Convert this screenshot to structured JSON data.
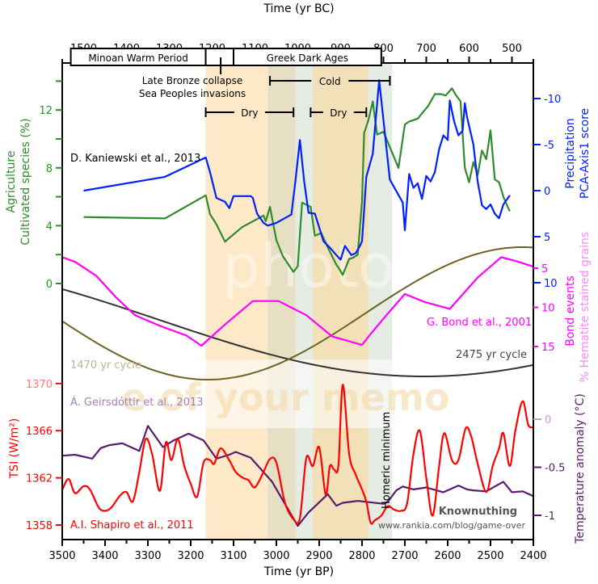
{
  "chart_data": {
    "type": "line",
    "title": "",
    "x_bottom": {
      "label": "Time (yr BP)",
      "range": [
        3500,
        2400
      ],
      "ticks": [
        3500,
        3400,
        3300,
        3200,
        3100,
        3000,
        2900,
        2800,
        2700,
        2600,
        2500,
        2400
      ]
    },
    "x_top": {
      "label": "Time (yr BC)",
      "range": [
        1550,
        450
      ],
      "ticks": [
        1500,
        1400,
        1300,
        1200,
        1100,
        1000,
        900,
        800,
        700,
        600,
        500
      ]
    },
    "axes": {
      "agriculture": {
        "label_line1": "Agriculture",
        "label_line2": "Cultivated species (%)",
        "side": "left",
        "ticks": [
          0,
          4,
          8,
          12
        ],
        "color": "#2e8b2e"
      },
      "precipitation": {
        "label_line1": "Precipitation",
        "label_line2": "PCA-Axis1 score",
        "side": "right",
        "ticks": [
          -10,
          -5,
          0,
          5,
          10
        ],
        "tick_labels": [
          "-10",
          "-5",
          "0",
          "5",
          "10"
        ],
        "inverted": true,
        "color": "#0020ff"
      },
      "bond": {
        "label_line1": "Bond events",
        "label_line2": "% Hematite stained grains",
        "side": "right",
        "ticks": [
          5,
          10,
          15
        ],
        "color": "#ff00ff"
      },
      "tsi": {
        "label": "TSI (W/m²)",
        "side": "left",
        "ticks": [
          1358,
          1362,
          1366,
          1370
        ],
        "color": "#ff0000"
      },
      "temperature": {
        "label": "Temperature anomaly (°C)",
        "side": "right",
        "ticks": [
          0,
          -0.5,
          -1
        ],
        "tick_labels": [
          "0",
          "-0.5",
          "-1"
        ],
        "color": "#5a1a6e"
      }
    },
    "bands": [
      {
        "from": 3165,
        "to": 3020,
        "color": "#fde9c8"
      },
      {
        "from": 3020,
        "to": 2955,
        "color": "#e6dfc4"
      },
      {
        "from": 2955,
        "to": 2915,
        "color": "#e4ece4"
      },
      {
        "from": 2915,
        "to": 2785,
        "color": "#f2e0b8"
      },
      {
        "from": 2785,
        "to": 2730,
        "color": "#e4ece4"
      }
    ],
    "periods": [
      {
        "label": "Minoan Warm Period",
        "from_bc": 1530,
        "to_bc": 1215
      },
      {
        "label": "",
        "from_bc": 1215,
        "to_bc": 1150
      },
      {
        "label": "Greek Dark Ages",
        "from_bc": 1150,
        "to_bc": 805
      }
    ],
    "annotations": {
      "collapse_line1": "Late Bronze collapse",
      "collapse_line2": "Sea Peoples invasions",
      "cold": {
        "label": "Cold",
        "from_bp": 3015,
        "to_bp": 2735
      },
      "dry1": {
        "label": "Dry",
        "from_bp": 3165,
        "to_bp": 2960
      },
      "dry2": {
        "label": "Dry",
        "from_bp": 2920,
        "to_bp": 2790
      },
      "homeric": "Homeric minimum",
      "kaniewski": "D. Kaniewski et al., 2013",
      "bond_ref": "G. Bond et al., 2001",
      "cycle2475": "2475 yr cycle",
      "cycle1470": "1470 yr cycle",
      "geirsdottir": "Á. Geirsdóttir et al., 2013",
      "shapiro": "A.I. Shapiro et al., 2011",
      "credit_name": "Knownuthing",
      "credit_url": "www.rankia.com/blog/game-over",
      "watermark1": "photob",
      "watermark2": "e of your memo"
    },
    "series": [
      {
        "name": "Agriculture (cultivated species %)",
        "axis": "agriculture",
        "color": "#2e8b2e",
        "x": [
          3450,
          3260,
          3165,
          3155,
          3140,
          3120,
          3080,
          3030,
          3025,
          3015,
          3000,
          2985,
          2960,
          2950,
          2940,
          2920,
          2910,
          2895,
          2880,
          2860,
          2855,
          2845,
          2830,
          2820,
          2810,
          2800,
          2795,
          2785,
          2775,
          2765,
          2750,
          2715,
          2700,
          2690,
          2670,
          2645,
          2630,
          2615,
          2605,
          2590,
          2580,
          2570,
          2560,
          2550,
          2540,
          2530,
          2520,
          2510,
          2500,
          2490,
          2480,
          2470,
          2460,
          2455
        ],
        "y": [
          4.6,
          4.5,
          6.1,
          4.8,
          4.1,
          2.9,
          3.9,
          4.7,
          4.3,
          5.3,
          3.0,
          1.9,
          0.8,
          1.2,
          5.6,
          5.3,
          3.3,
          3.5,
          2.5,
          1.3,
          1.1,
          0.6,
          1.7,
          1.8,
          2.0,
          5.7,
          10.4,
          11.3,
          12.6,
          10.3,
          10.5,
          8.0,
          11.0,
          11.2,
          11.4,
          12.3,
          13.1,
          13.1,
          13.0,
          13.5,
          13.0,
          12.6,
          8.0,
          7.0,
          8.4,
          7.5,
          9.2,
          8.6,
          10.6,
          7.2,
          7.0,
          6.0,
          5.3,
          5.0
        ]
      },
      {
        "name": "Precipitation (PCA-Axis1 score)",
        "axis": "precipitation",
        "color": "#0020ff",
        "x": [
          3450,
          3260,
          3165,
          3155,
          3140,
          3120,
          3110,
          3100,
          3080,
          3060,
          3055,
          3045,
          3030,
          3020,
          3000,
          2965,
          2955,
          2945,
          2935,
          2925,
          2910,
          2890,
          2875,
          2860,
          2850,
          2840,
          2825,
          2815,
          2805,
          2800,
          2790,
          2775,
          2760,
          2735,
          2705,
          2700,
          2690,
          2680,
          2670,
          2660,
          2650,
          2640,
          2630,
          2620,
          2610,
          2600,
          2595,
          2585,
          2575,
          2565,
          2560,
          2555,
          2540,
          2530,
          2520,
          2510,
          2500,
          2490,
          2480,
          2470,
          2455
        ],
        "y": [
          0.0,
          -1.5,
          -3.6,
          -2.0,
          0.8,
          1.2,
          1.9,
          0.6,
          0.6,
          0.6,
          0.8,
          2.5,
          3.5,
          3.8,
          3.5,
          2.6,
          -1.3,
          -5.5,
          -1.0,
          2.4,
          2.5,
          5.5,
          6.2,
          7.0,
          7.5,
          6.0,
          7.0,
          6.8,
          6.0,
          5.5,
          -1.5,
          -4.0,
          -12.0,
          -1.2,
          1.3,
          4.3,
          -1.8,
          -0.3,
          -0.8,
          0.9,
          -1.6,
          -1.0,
          -2.0,
          -4.5,
          -6.0,
          -5.5,
          -9.8,
          -7.5,
          -6.0,
          -6.5,
          -9.5,
          -8.0,
          -5.0,
          -1.0,
          1.6,
          2.0,
          1.5,
          2.5,
          3.0,
          1.5,
          0.5
        ]
      },
      {
        "name": "Bond events (% hematite stained grains)",
        "axis": "bond",
        "color": "#ff00ff",
        "x": [
          3500,
          3470,
          3420,
          3375,
          3330,
          3275,
          3210,
          3175,
          3120,
          3055,
          2995,
          2930,
          2870,
          2800,
          2780,
          2740,
          2700,
          2655,
          2595,
          2530,
          2475,
          2440,
          2400
        ],
        "y": [
          3.6,
          4.2,
          6.0,
          8.7,
          11.0,
          12.3,
          13.6,
          14.9,
          12.2,
          9.2,
          9.2,
          11.0,
          13.7,
          14.8,
          13.4,
          10.8,
          8.3,
          9.3,
          10.2,
          6.2,
          3.6,
          4.1,
          4.8
        ]
      },
      {
        "name": "2475 yr cycle",
        "axis": "none",
        "color": "#333333",
        "kind": "cosine",
        "period": 2475,
        "min_at_bp": 2655,
        "note": "relative oscillation"
      },
      {
        "name": "1470 yr cycle",
        "axis": "none",
        "color": "#6e6320",
        "kind": "cosine",
        "period": 1470,
        "min_at_bp": 3160,
        "note": "relative oscillation"
      },
      {
        "name": "Temperature anomaly (Geirsdóttir)",
        "axis": "temperature",
        "color": "#5a1a6e",
        "x": [
          3500,
          3470,
          3430,
          3410,
          3390,
          3360,
          3320,
          3300,
          3265,
          3240,
          3205,
          3170,
          3140,
          3110,
          3095,
          3060,
          3010,
          2950,
          2925,
          2880,
          2860,
          2845,
          2810,
          2790,
          2750,
          2740,
          2720,
          2705,
          2680,
          2650,
          2610,
          2575,
          2555,
          2540,
          2510,
          2490,
          2470,
          2450,
          2425,
          2400
        ],
        "y": [
          -0.38,
          -0.37,
          -0.41,
          -0.3,
          -0.27,
          -0.25,
          -0.33,
          -0.07,
          -0.29,
          -0.22,
          -0.15,
          -0.22,
          -0.41,
          -0.37,
          -0.34,
          -0.4,
          -0.65,
          -1.11,
          -0.97,
          -0.78,
          -0.9,
          -0.87,
          -0.85,
          -0.86,
          -0.88,
          -0.86,
          -0.74,
          -0.7,
          -0.73,
          -0.71,
          -0.76,
          -0.69,
          -0.73,
          -0.74,
          -0.75,
          -0.7,
          -0.65,
          -0.76,
          -0.75,
          -0.8
        ]
      },
      {
        "name": "TSI (Shapiro)",
        "axis": "tsi",
        "color": "#ff0000",
        "smooth": true,
        "x": [
          3500,
          3485,
          3470,
          3450,
          3435,
          3415,
          3400,
          3385,
          3365,
          3350,
          3335,
          3320,
          3305,
          3290,
          3272,
          3258,
          3245,
          3230,
          3215,
          3200,
          3185,
          3170,
          3155,
          3145,
          3130,
          3110,
          3095,
          3078,
          3065,
          3050,
          3030,
          3015,
          3000,
          2980,
          2960,
          2945,
          2930,
          2915,
          2900,
          2885,
          2875,
          2865,
          2855,
          2845,
          2830,
          2815,
          2800,
          2790,
          2780,
          2770,
          2755,
          2740,
          2725,
          2710,
          2695,
          2680,
          2665,
          2650,
          2635,
          2620,
          2608,
          2590,
          2575,
          2558,
          2545,
          2530,
          2510,
          2495,
          2480,
          2470,
          2455,
          2442,
          2425,
          2412,
          2400
        ],
        "y": [
          1361.0,
          1361.9,
          1360.7,
          1361.3,
          1361.0,
          1359.5,
          1359.2,
          1359.5,
          1360.5,
          1360.8,
          1360.0,
          1362.5,
          1365.3,
          1364.0,
          1360.9,
          1365.0,
          1363.5,
          1365.3,
          1363.0,
          1361.5,
          1360.4,
          1363.3,
          1363.5,
          1363.2,
          1364.5,
          1363.5,
          1362.5,
          1362.0,
          1361.8,
          1361.2,
          1362.5,
          1363.6,
          1363.3,
          1359.9,
          1358.5,
          1358.6,
          1363.7,
          1363.0,
          1364.6,
          1360.6,
          1363.0,
          1362.7,
          1363.1,
          1369.9,
          1364.0,
          1362.3,
          1361.0,
          1360.0,
          1358.2,
          1358.4,
          1358.8,
          1359.6,
          1359.3,
          1359.2,
          1359.8,
          1364.0,
          1366.0,
          1362.0,
          1358.8,
          1363.0,
          1365.8,
          1363.5,
          1363.5,
          1366.2,
          1365.5,
          1363.2,
          1360.8,
          1363.0,
          1364.5,
          1365.8,
          1363.0,
          1366.0,
          1368.5,
          1366.5,
          1366.3
        ]
      }
    ]
  }
}
